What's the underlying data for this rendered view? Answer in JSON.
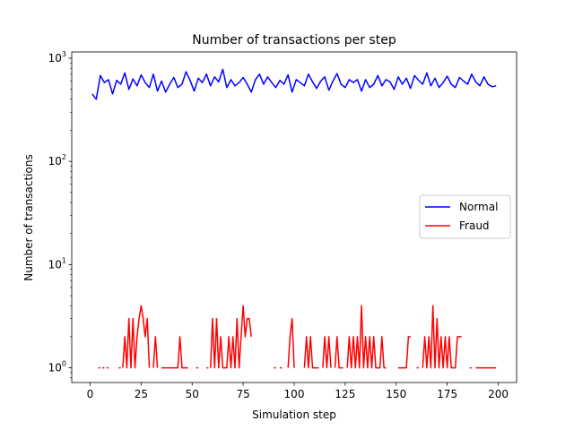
{
  "chart_data": {
    "type": "line",
    "title": "Number of transactions per step",
    "xlabel": "Simulation step",
    "ylabel": "Number of transactions",
    "yscale": "log",
    "xlim": [
      -9,
      209
    ],
    "ylim": [
      0.72,
      1150
    ],
    "xticks": [
      0,
      25,
      50,
      75,
      100,
      125,
      150,
      175,
      200
    ],
    "yticks": [
      1,
      10,
      100,
      1000
    ],
    "ytick_labels": [
      {
        "base": "10",
        "exp": "0"
      },
      {
        "base": "10",
        "exp": "1"
      },
      {
        "base": "10",
        "exp": "2"
      },
      {
        "base": "10",
        "exp": "3"
      }
    ],
    "grid": false,
    "legend_position": "center-right",
    "series": [
      {
        "name": "Normal",
        "color": "#0000ff",
        "x": [
          1,
          3,
          5,
          7,
          9,
          11,
          13,
          15,
          17,
          19,
          21,
          23,
          25,
          27,
          29,
          31,
          33,
          35,
          37,
          39,
          41,
          43,
          45,
          47,
          49,
          51,
          53,
          55,
          57,
          59,
          61,
          63,
          65,
          67,
          69,
          71,
          73,
          75,
          77,
          79,
          81,
          83,
          85,
          87,
          89,
          91,
          93,
          95,
          97,
          99,
          101,
          103,
          105,
          107,
          109,
          111,
          113,
          115,
          117,
          119,
          121,
          123,
          125,
          127,
          129,
          131,
          133,
          135,
          137,
          139,
          141,
          143,
          145,
          147,
          149,
          151,
          153,
          155,
          157,
          159,
          161,
          163,
          165,
          167,
          169,
          171,
          173,
          175,
          177,
          179,
          181,
          183,
          185,
          187,
          189,
          191,
          193,
          195,
          197,
          199
        ],
        "y": [
          450,
          400,
          680,
          580,
          620,
          450,
          610,
          560,
          720,
          500,
          630,
          540,
          690,
          580,
          520,
          700,
          480,
          600,
          470,
          560,
          650,
          520,
          560,
          740,
          610,
          480,
          640,
          580,
          700,
          540,
          660,
          590,
          780,
          520,
          620,
          540,
          580,
          650,
          560,
          470,
          620,
          700,
          560,
          660,
          580,
          520,
          610,
          560,
          690,
          470,
          620,
          580,
          540,
          700,
          590,
          510,
          600,
          660,
          490,
          600,
          710,
          560,
          520,
          620,
          580,
          620,
          480,
          620,
          520,
          560,
          680,
          540,
          620,
          590,
          500,
          660,
          560,
          640,
          510,
          680,
          610,
          560,
          720,
          540,
          640,
          520,
          580,
          670,
          560,
          520,
          650,
          600,
          560,
          700,
          590,
          540,
          660,
          560,
          530,
          540
        ]
      },
      {
        "name": "Fraud",
        "color": "#ff0000",
        "segments": [
          {
            "x": [
              4,
              5
            ],
            "y": [
              1,
              1
            ]
          },
          {
            "x": [
              6,
              7
            ],
            "y": [
              1,
              1
            ]
          },
          {
            "x": [
              8,
              9
            ],
            "y": [
              1,
              1
            ]
          },
          {
            "x": [
              14,
              15
            ],
            "y": [
              1,
              1
            ]
          },
          {
            "x": [
              16,
              17,
              18,
              19,
              20,
              21,
              22,
              23,
              24,
              25,
              26,
              27,
              28,
              29
            ],
            "y": [
              1,
              2,
              1,
              3,
              1,
              3,
              1,
              2,
              3,
              4,
              3,
              2,
              3,
              1
            ]
          },
          {
            "x": [
              31,
              32,
              33
            ],
            "y": [
              1,
              2,
              1
            ]
          },
          {
            "x": [
              35,
              36,
              37,
              38,
              39,
              40,
              41,
              42,
              43,
              44,
              45,
              46,
              47,
              48
            ],
            "y": [
              1,
              1,
              1,
              1,
              1,
              1,
              1,
              1,
              1,
              2,
              1,
              1,
              1,
              1
            ]
          },
          {
            "x": [
              52,
              53
            ],
            "y": [
              1,
              1
            ]
          },
          {
            "x": [
              57,
              58
            ],
            "y": [
              1,
              1
            ]
          },
          {
            "x": [
              59,
              60,
              61,
              62,
              63,
              64,
              65,
              66,
              67,
              68,
              69,
              70,
              71,
              72,
              73,
              74,
              75,
              76,
              77,
              78,
              79
            ],
            "y": [
              1,
              3,
              1,
              3,
              1,
              2,
              1,
              1,
              1,
              2,
              1,
              2,
              1,
              3,
              1,
              2,
              4,
              2,
              3,
              3,
              2
            ]
          },
          {
            "x": [
              90,
              91
            ],
            "y": [
              1,
              1
            ]
          },
          {
            "x": [
              93,
              94
            ],
            "y": [
              1,
              1
            ]
          },
          {
            "x": [
              97,
              98,
              99,
              100
            ],
            "y": [
              1,
              2,
              3,
              1
            ]
          },
          {
            "x": [
              105,
              106,
              107,
              108,
              109,
              110,
              111,
              112
            ],
            "y": [
              1,
              2,
              1,
              2,
              1,
              1,
              1,
              1
            ]
          },
          {
            "x": [
              114,
              115,
              116,
              117,
              118
            ],
            "y": [
              1,
              2,
              1,
              2,
              1
            ]
          },
          {
            "x": [
              120,
              121,
              122,
              123,
              124
            ],
            "y": [
              1,
              2,
              1,
              1,
              1
            ]
          },
          {
            "x": [
              126,
              127,
              128,
              129,
              130,
              131,
              132,
              133,
              134,
              135,
              136,
              137,
              138,
              139,
              140,
              141,
              142,
              143,
              144,
              145
            ],
            "y": [
              1,
              2,
              1,
              2,
              1,
              2,
              1,
              4,
              1,
              2,
              1,
              2,
              1,
              2,
              1,
              1,
              1,
              2,
              1,
              1
            ]
          },
          {
            "x": [
              151,
              152,
              153,
              154,
              155,
              156,
              157
            ],
            "y": [
              1,
              1,
              1,
              1,
              1,
              2,
              2
            ]
          },
          {
            "x": [
              160,
              161
            ],
            "y": [
              1,
              1
            ]
          },
          {
            "x": [
              163,
              164,
              165,
              166,
              167,
              168,
              169,
              170,
              171,
              172,
              173,
              174,
              175,
              176,
              177,
              178,
              179,
              180,
              181,
              182
            ],
            "y": [
              1,
              2,
              1,
              2,
              1,
              4,
              1,
              3,
              1,
              2,
              1,
              2,
              1,
              2,
              1,
              1,
              1,
              2,
              2,
              2
            ]
          },
          {
            "x": [
              186,
              187
            ],
            "y": [
              1,
              1
            ]
          },
          {
            "x": [
              189,
              190,
              191,
              192,
              193,
              194,
              195,
              196,
              197,
              198,
              199
            ],
            "y": [
              1,
              1,
              1,
              1,
              1,
              1,
              1,
              1,
              1,
              1,
              1
            ]
          }
        ]
      }
    ]
  }
}
